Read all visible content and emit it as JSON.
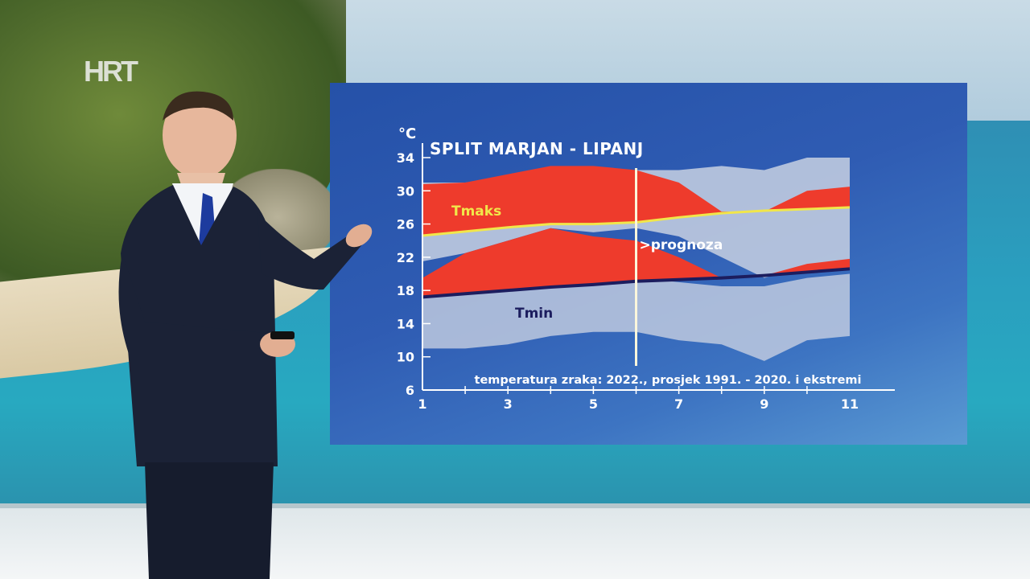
{
  "broadcaster": "HRT",
  "chart_data": {
    "type": "area",
    "title": "SPLIT MARJAN - LIPANJ",
    "subtitle": "temperatura zraka: 2022., prosjek 1991. - 2020. i ekstremi",
    "ylabel": "°C",
    "ylim": [
      6,
      34
    ],
    "xlim": [
      1,
      11
    ],
    "x_ticks": [
      "1",
      "3",
      "5",
      "7",
      "9",
      "11"
    ],
    "y_ticks": [
      "34",
      "30",
      "26",
      "22",
      "18",
      "14",
      "10",
      "6"
    ],
    "forecast_marker": {
      "x": 6,
      "label": ">prognoza"
    },
    "x": [
      1,
      2,
      3,
      4,
      5,
      6,
      7,
      8,
      9,
      10,
      11
    ],
    "series": [
      {
        "name": "Tmaks",
        "role": "average_max_line",
        "values": [
          24.6,
          25.1,
          25.6,
          26.0,
          26.0,
          26.2,
          26.8,
          27.3,
          27.6,
          27.8,
          28.0
        ]
      },
      {
        "name": "Tmin",
        "role": "average_min_line",
        "values": [
          17.2,
          17.6,
          18.0,
          18.4,
          18.7,
          19.1,
          19.3,
          19.5,
          19.8,
          20.2,
          20.6
        ]
      },
      {
        "role": "max_range_upper",
        "values": [
          31.0,
          31.0,
          31.5,
          32.0,
          32.5,
          32.5,
          32.5,
          33.0,
          32.5,
          34.0,
          34.0
        ]
      },
      {
        "role": "max_range_lower",
        "values": [
          21.5,
          22.5,
          24.0,
          25.5,
          25.0,
          25.5,
          24.5,
          22.0,
          19.5,
          21.0,
          20.5
        ]
      },
      {
        "role": "min_range_upper",
        "values": [
          17.0,
          18.0,
          18.5,
          19.0,
          19.0,
          19.5,
          19.0,
          18.5,
          18.5,
          19.5,
          20.0
        ]
      },
      {
        "role": "min_range_lower",
        "values": [
          11.0,
          11.0,
          11.5,
          12.5,
          13.0,
          13.0,
          12.0,
          11.5,
          9.5,
          12.0,
          12.5
        ]
      },
      {
        "role": "observed_2022_max",
        "values": [
          30.8,
          31.0,
          32.0,
          33.0,
          33.0,
          32.5,
          31.0,
          27.5,
          27.5,
          30.0,
          30.5
        ]
      },
      {
        "role": "observed_2022_min",
        "values": [
          19.5,
          22.5,
          24.0,
          25.5,
          24.5,
          24.0,
          22.0,
          19.5,
          19.8,
          21.2,
          21.8
        ]
      }
    ],
    "colors": {
      "range": "#c3cde0",
      "observed": "#ee3b2c",
      "tmaks": "#f1e64a",
      "tmin": "#1c1d5e",
      "axis": "#ffffff",
      "background": "#2c59b0"
    },
    "grid": false
  }
}
